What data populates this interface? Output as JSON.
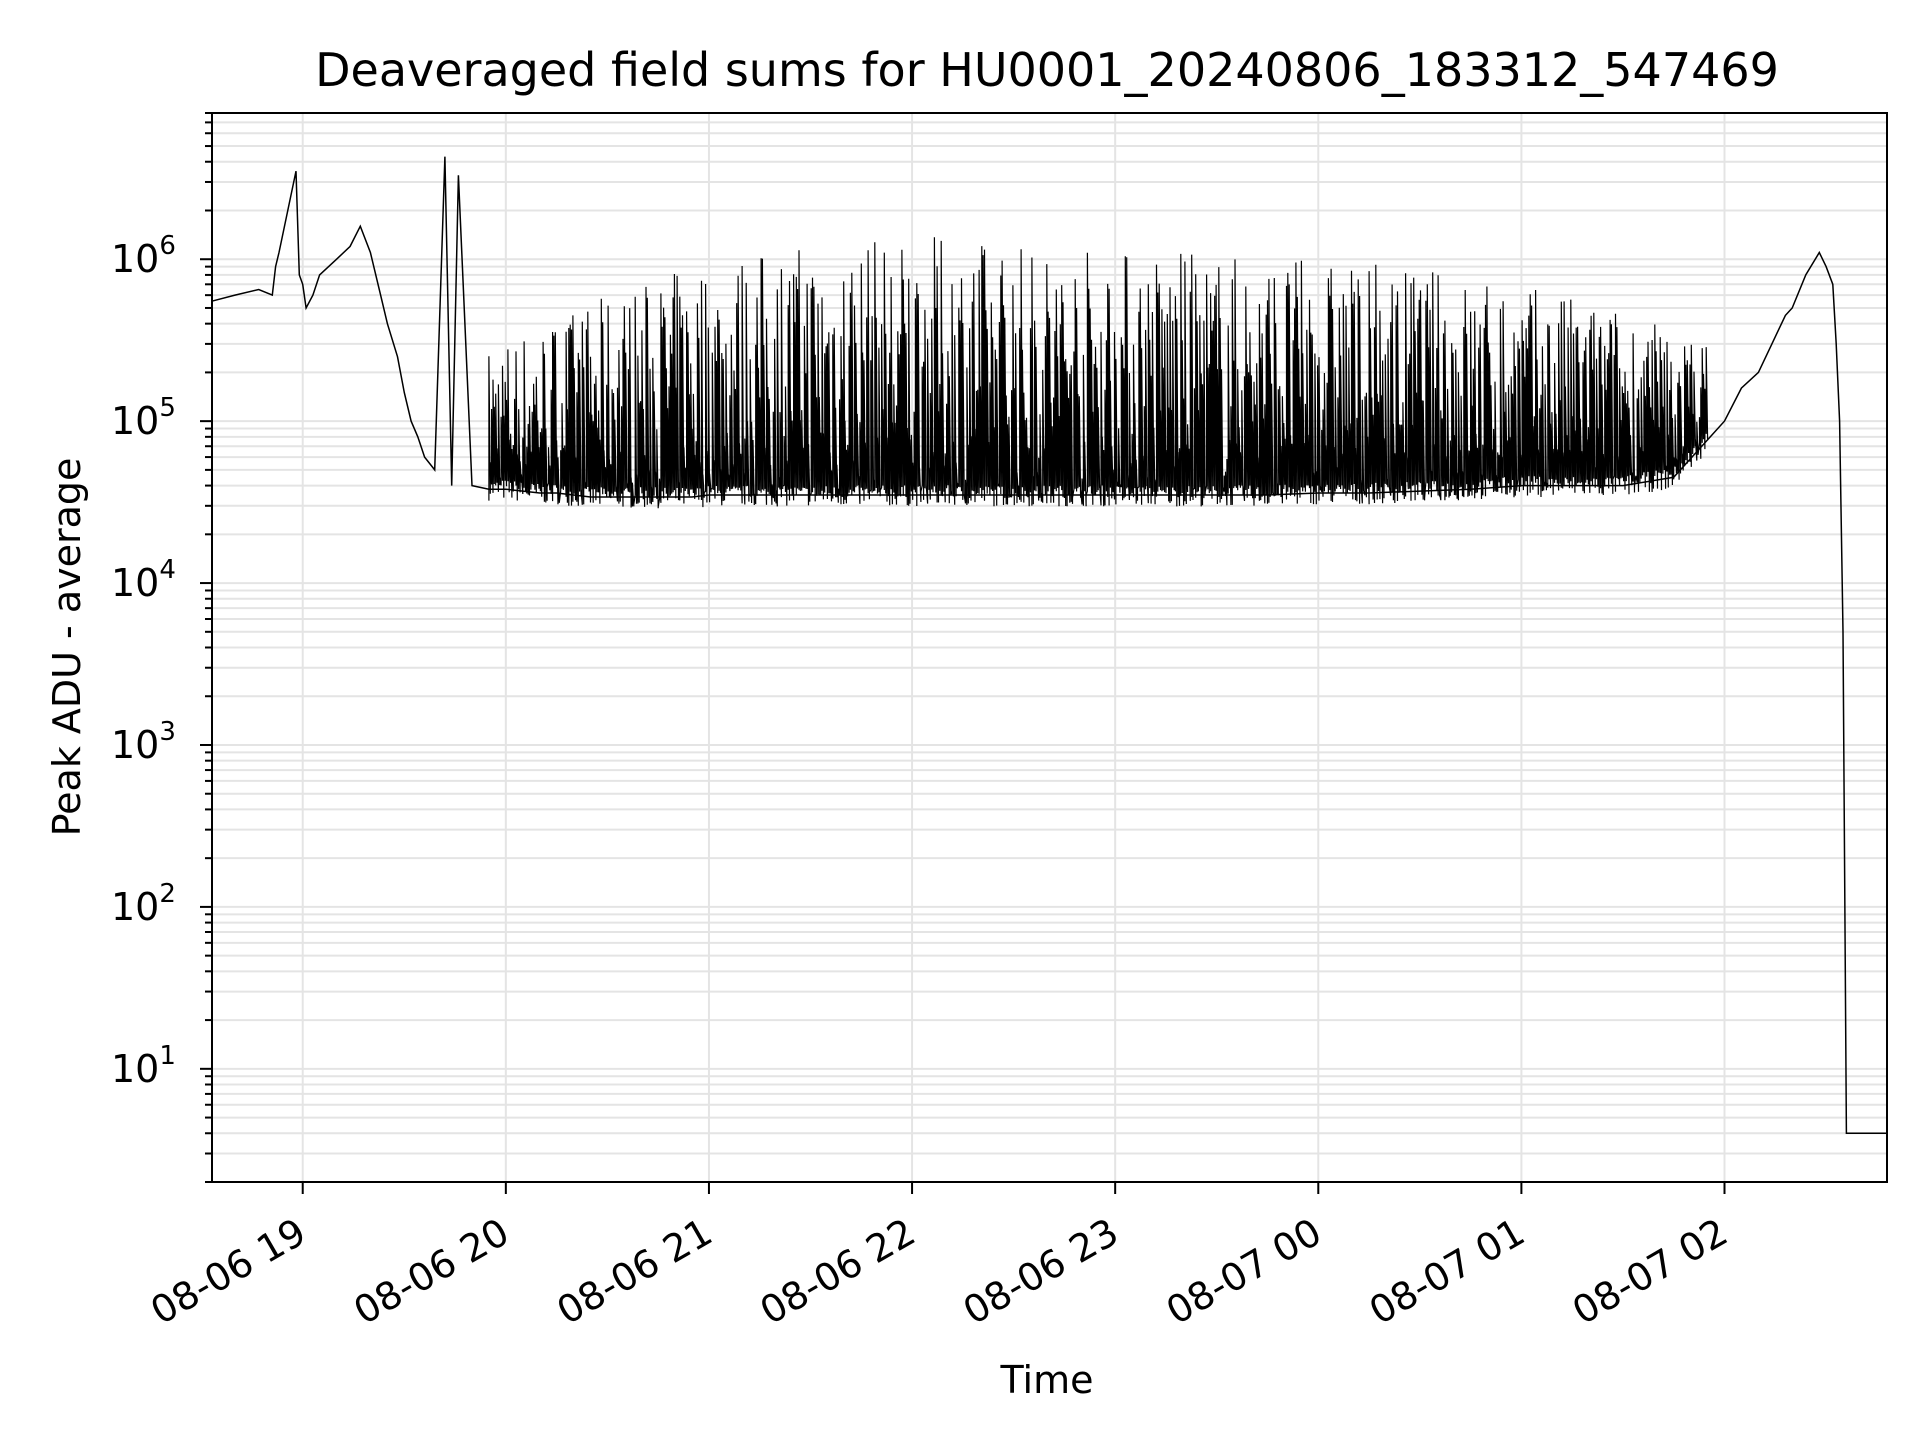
{
  "chart_data": {
    "type": "line",
    "title": "Deaveraged field sums for HU0001_20240806_183312_547469",
    "xlabel": "Time",
    "ylabel": "Peak ADU - average",
    "y_scale": "log",
    "grid": true,
    "xlim": [
      "2024-08-06T18:33:12",
      "2024-08-07T02:48:00"
    ],
    "ylim": [
      2,
      8000000
    ],
    "x_ticks": [
      "2024-08-06T19:00",
      "2024-08-06T20:00",
      "2024-08-06T21:00",
      "2024-08-06T22:00",
      "2024-08-06T23:00",
      "2024-08-07T00:00",
      "2024-08-07T01:00",
      "2024-08-07T02:00"
    ],
    "x_tick_labels": [
      "08-06 19",
      "08-06 20",
      "08-06 21",
      "08-06 22",
      "08-06 23",
      "08-07 00",
      "08-07 01",
      "08-07 02"
    ],
    "y_ticks": [
      10,
      100,
      1000,
      10000,
      100000,
      1000000
    ],
    "y_tick_base": "10",
    "y_tick_exponents": [
      "1",
      "2",
      "3",
      "4",
      "5",
      "6"
    ],
    "line_color": "#000000",
    "series": [
      {
        "x": [
          "2024-08-06T18:33",
          "2024-08-06T18:40",
          "2024-08-06T18:47",
          "2024-08-06T18:51",
          "2024-08-06T18:52",
          "2024-08-06T18:53",
          "2024-08-06T18:58",
          "2024-08-06T18:59",
          "2024-08-06T19:00",
          "2024-08-06T19:01",
          "2024-08-06T19:03",
          "2024-08-06T19:05",
          "2024-08-06T19:10",
          "2024-08-06T19:14",
          "2024-08-06T19:17",
          "2024-08-06T19:20",
          "2024-08-06T19:23",
          "2024-08-06T19:25",
          "2024-08-06T19:28",
          "2024-08-06T19:30",
          "2024-08-06T19:32",
          "2024-08-06T19:34",
          "2024-08-06T19:36",
          "2024-08-06T19:39",
          "2024-08-06T19:42",
          "2024-08-06T19:44",
          "2024-08-06T19:46",
          "2024-08-06T19:50",
          "2024-08-06T19:55",
          "2024-08-06T20:00",
          "2024-08-06T20:05",
          "2024-08-06T20:10",
          "2024-08-06T20:15",
          "2024-08-06T20:20",
          "2024-08-06T20:25",
          "2024-08-06T20:30",
          "2024-08-06T20:35",
          "2024-08-06T20:40",
          "2024-08-06T20:45",
          "2024-08-06T20:50",
          "2024-08-06T20:55",
          "2024-08-06T21:00",
          "2024-08-06T21:15",
          "2024-08-06T21:30",
          "2024-08-06T21:45",
          "2024-08-06T22:00",
          "2024-08-06T22:15",
          "2024-08-06T22:30",
          "2024-08-06T22:45",
          "2024-08-06T23:00",
          "2024-08-06T23:15",
          "2024-08-06T23:30",
          "2024-08-06T23:45",
          "2024-08-07T00:00",
          "2024-08-07T00:15",
          "2024-08-07T00:30",
          "2024-08-07T00:45",
          "2024-08-07T01:00",
          "2024-08-07T01:15",
          "2024-08-07T01:30",
          "2024-08-07T01:45",
          "2024-08-07T02:00",
          "2024-08-07T02:05",
          "2024-08-07T02:10",
          "2024-08-07T02:14",
          "2024-08-07T02:18",
          "2024-08-07T02:20",
          "2024-08-07T02:24",
          "2024-08-07T02:28",
          "2024-08-07T02:30",
          "2024-08-07T02:32",
          "2024-08-07T02:33",
          "2024-08-07T02:34",
          "2024-08-07T02:35",
          "2024-08-07T02:36",
          "2024-08-07T02:38",
          "2024-08-07T02:42",
          "2024-08-07T02:48"
        ],
        "y": [
          550000,
          600000,
          650000,
          600000,
          900000,
          1100000,
          3500000,
          800000,
          700000,
          500000,
          600000,
          800000,
          1000000,
          1200000,
          1600000,
          1100000,
          600000,
          400000,
          250000,
          150000,
          100000,
          80000,
          60000,
          50000,
          4300000,
          40000,
          3300000,
          40000,
          38000,
          38000,
          37000,
          36000,
          36000,
          35000,
          34000,
          34000,
          34000,
          34000,
          34000,
          34000,
          34000,
          35000,
          35000,
          35000,
          35000,
          35000,
          35000,
          35000,
          35000,
          35000,
          35000,
          35000,
          35000,
          36000,
          36000,
          37000,
          38000,
          40000,
          40000,
          40000,
          45000,
          100000,
          160000,
          200000,
          300000,
          450000,
          500000,
          800000,
          1100000,
          900000,
          700000,
          300000,
          100000,
          5000,
          4,
          4,
          4,
          4
        ]
      }
    ],
    "upper_envelope": {
      "x": [
        "2024-08-06T19:55",
        "2024-08-06T20:30",
        "2024-08-06T21:00",
        "2024-08-06T21:30",
        "2024-08-06T22:00",
        "2024-08-06T22:30",
        "2024-08-06T23:00",
        "2024-08-06T23:30",
        "2024-08-07T00:00",
        "2024-08-07T00:30",
        "2024-08-07T01:00",
        "2024-08-07T01:30",
        "2024-08-07T01:55"
      ],
      "y": [
        300000,
        600000,
        1000000,
        1300000,
        1400000,
        1300000,
        1200000,
        1100000,
        1000000,
        900000,
        700000,
        500000,
        300000
      ]
    }
  }
}
